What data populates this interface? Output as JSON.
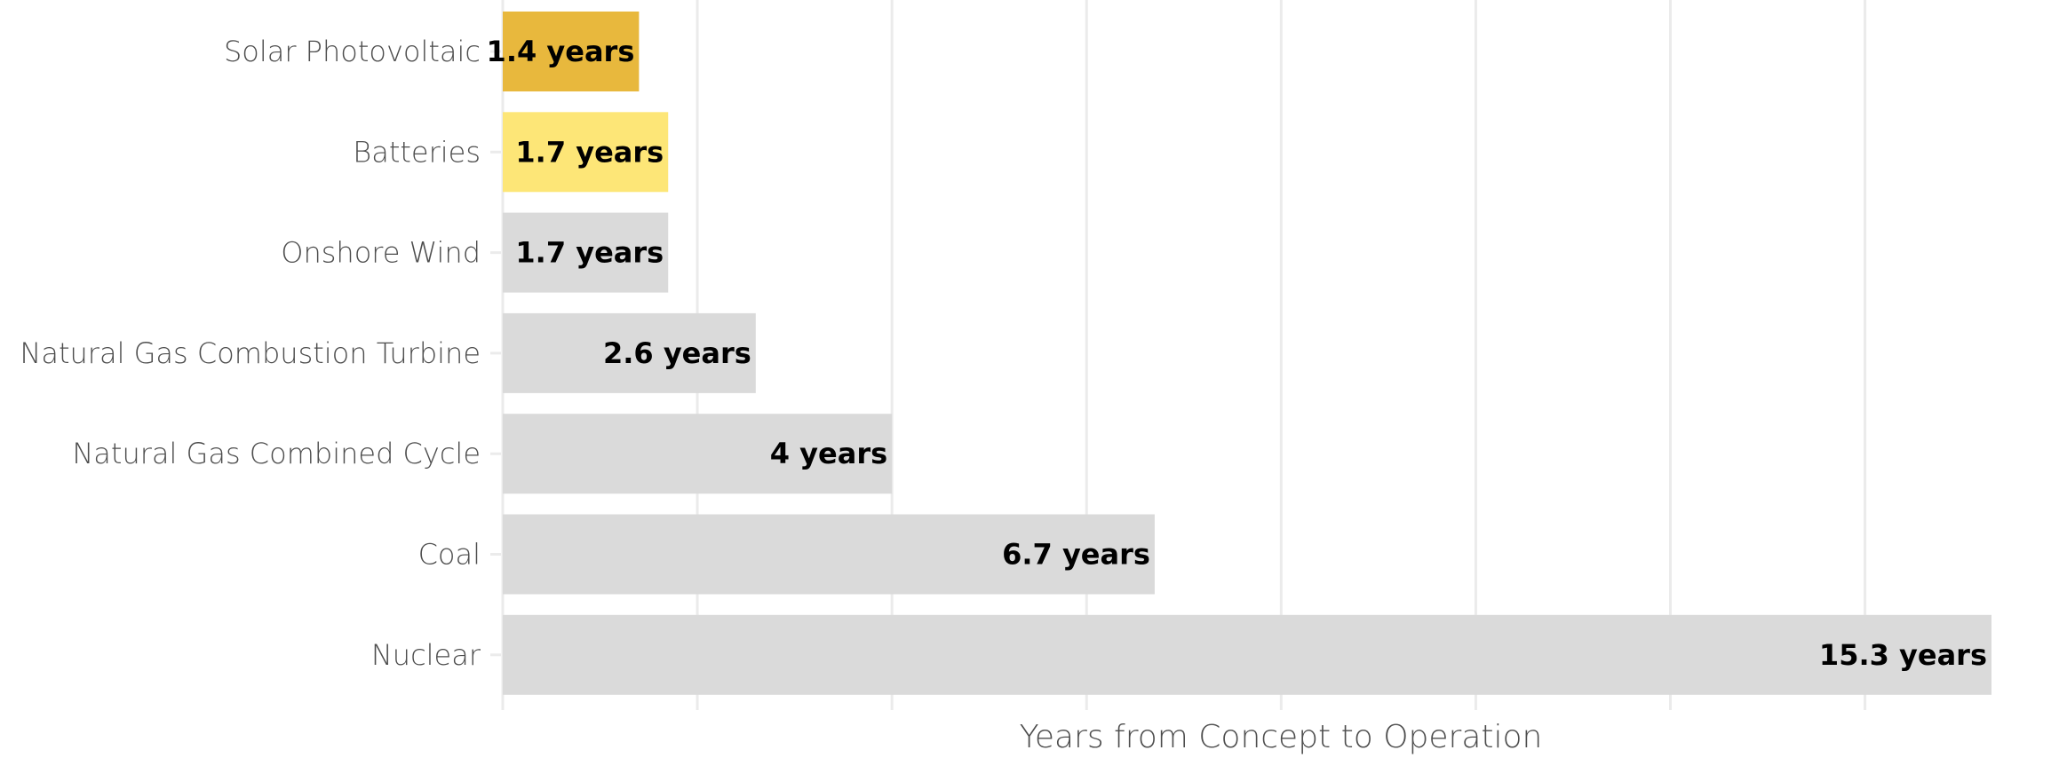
{
  "chart_data": {
    "type": "bar",
    "orientation": "horizontal",
    "categories": [
      "Solar Photovoltaic",
      "Batteries",
      "Onshore Wind",
      "Natural Gas Combustion Turbine",
      "Natural Gas Combined Cycle",
      "Coal",
      "Nuclear"
    ],
    "values": [
      1.4,
      1.7,
      1.7,
      2.6,
      4,
      6.7,
      15.3
    ],
    "data_labels": [
      "1.4 years",
      "1.7 years",
      "1.7 years",
      "2.6 years",
      "4 years",
      "6.7 years",
      "15.3 years"
    ],
    "colors": [
      "#e8b83d",
      "#fde677",
      "#dadada",
      "#dadada",
      "#dadada",
      "#dadada",
      "#dadada"
    ],
    "title": "",
    "xlabel": "Years from Concept to Operation",
    "ylabel": "",
    "xlim": [
      0,
      15.3
    ],
    "x_grid_interval": 2,
    "x_tick_labels_shown": false,
    "grid": true,
    "legend": "none"
  }
}
